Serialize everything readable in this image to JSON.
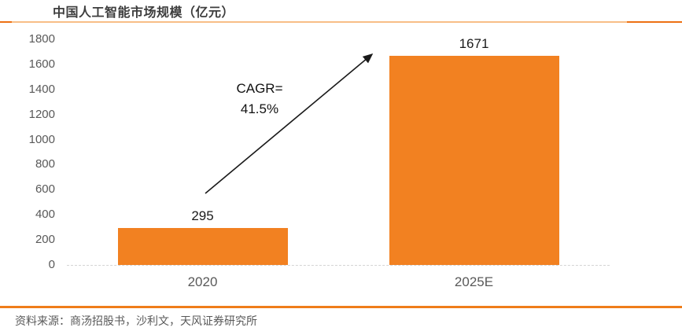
{
  "page": {
    "source_note": "资料来源：商汤招股书，沙利文，天风证券研究所"
  },
  "chart_data": {
    "type": "bar",
    "title": "中国人工智能市场规模（亿元）",
    "categories": [
      "2020",
      "2025E"
    ],
    "values": [
      295,
      1671
    ],
    "data_labels": [
      "295",
      "1671"
    ],
    "annotation": {
      "line1": "CAGR=",
      "line2": "41.5%",
      "arrow": "diagonal arrow from above 2020 bar to top of 2025E bar"
    },
    "ylim": [
      0,
      1800
    ],
    "ytick_interval": 200,
    "ytick_labels": [
      "1800",
      "1600",
      "1400",
      "1200",
      "1000",
      "800",
      "600",
      "400",
      "200",
      "0"
    ],
    "xlabel": "",
    "ylabel": "",
    "grid": false,
    "legend": "none"
  },
  "colors": {
    "bar": "#F28121",
    "title_rule_light": "#F8BE86",
    "title_rule_dark": "#ED7113",
    "footer_rule": "#EF7D1A",
    "axis_text": "#595959",
    "value_text": "#1A1A1A",
    "arrow": "#1A1A1A"
  }
}
